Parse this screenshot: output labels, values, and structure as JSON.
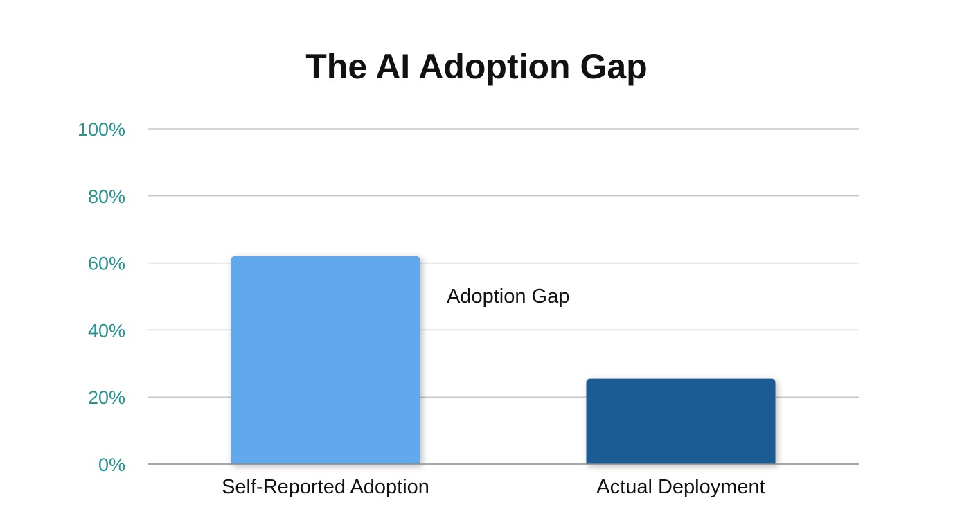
{
  "chart_data": {
    "type": "bar",
    "title": "The AI Adoption Gap",
    "xlabel": "",
    "ylabel": "",
    "categories": [
      "Self-Reported Adoption",
      "Actual Deployment"
    ],
    "values": [
      62,
      25.5
    ],
    "ylim": [
      0,
      100
    ],
    "yticks": [
      0,
      20,
      40,
      60,
      80,
      100
    ],
    "ytick_labels": [
      "0%",
      "20%",
      "40%",
      "60%",
      "80%",
      "100%"
    ],
    "grid": true,
    "legend": "none",
    "bar_colors": [
      "#62a8ec",
      "#1f5c94"
    ],
    "tick_label_color": "#2a9390",
    "annotations": [
      {
        "text": "Adoption Gap"
      }
    ]
  }
}
